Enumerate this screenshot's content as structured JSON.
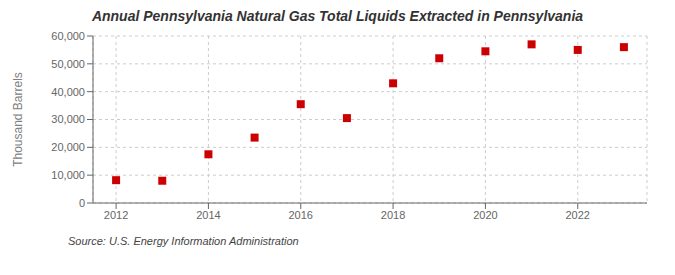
{
  "chart_data": {
    "type": "scatter",
    "title": "Annual Pennsylvania Natural Gas Total Liquids Extracted in Pennsylvania",
    "y_label": "Thousand Barrels",
    "annotations": [
      "Source: U.S. Energy Information Administration"
    ],
    "x": [
      2012,
      2013,
      2014,
      2015,
      2016,
      2017,
      2018,
      2019,
      2020,
      2021,
      2022,
      2023
    ],
    "values": [
      8200,
      8000,
      17500,
      23500,
      35500,
      30500,
      43000,
      52000,
      54500,
      57000,
      55000,
      56000
    ],
    "color": "#cc0000",
    "marker": "square",
    "xlim": [
      2011.5,
      2023.5
    ],
    "xticks": [
      2012,
      2014,
      2016,
      2018,
      2020,
      2022
    ],
    "ylim": [
      0,
      60000
    ],
    "yticks": [
      0,
      {
        "value": 10000,
        "label": "10,000"
      },
      {
        "value": 20000,
        "label": "20,000"
      },
      {
        "value": 30000,
        "label": "30,000"
      },
      {
        "value": 40000,
        "label": "40,000"
      },
      {
        "value": 50000,
        "label": "50,000"
      },
      {
        "value": 60000,
        "label": "60,000"
      }
    ],
    "grid": true
  }
}
